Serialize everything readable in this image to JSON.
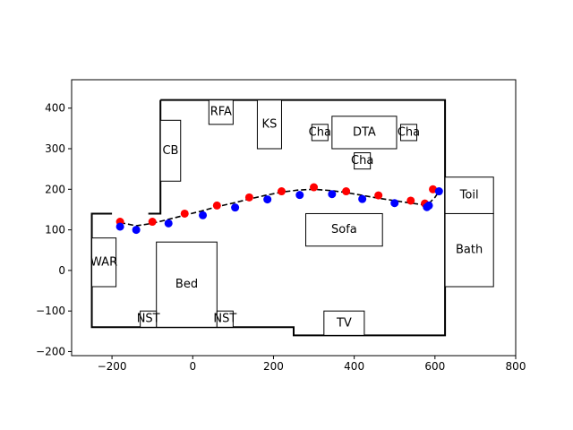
{
  "chart_data": {
    "type": "scatter",
    "title": "",
    "xlabel": "",
    "ylabel": "",
    "xlim": [
      -300,
      800
    ],
    "ylim": [
      -210,
      470
    ],
    "xticks": [
      -200,
      0,
      200,
      400,
      600,
      800
    ],
    "yticks": [
      -200,
      -100,
      0,
      100,
      200,
      300,
      400
    ],
    "grid": false,
    "walls": [
      [
        [
          -80,
          420
        ],
        [
          625,
          420
        ],
        [
          625,
          -160
        ],
        [
          250,
          -160
        ],
        [
          250,
          -140
        ],
        [
          -250,
          -140
        ],
        [
          -250,
          140
        ],
        [
          -200,
          140
        ]
      ],
      [
        [
          -80,
          420
        ],
        [
          -80,
          140
        ],
        [
          -110,
          140
        ]
      ]
    ],
    "furniture": [
      {
        "label": "RFA",
        "x0": 40,
        "x1": 100,
        "y0": 360,
        "y1": 420
      },
      {
        "label": "KS",
        "x0": 160,
        "x1": 220,
        "y0": 300,
        "y1": 420
      },
      {
        "label": "CB",
        "x0": -80,
        "x1": -30,
        "y0": 220,
        "y1": 370
      },
      {
        "label": "Cha",
        "x0": 295,
        "x1": 335,
        "y0": 320,
        "y1": 360
      },
      {
        "label": "DTA",
        "x0": 345,
        "x1": 505,
        "y0": 300,
        "y1": 380
      },
      {
        "label": "Cha",
        "x0": 515,
        "x1": 555,
        "y0": 320,
        "y1": 360
      },
      {
        "label": "Cha",
        "x0": 400,
        "x1": 440,
        "y0": 250,
        "y1": 290
      },
      {
        "label": "Toil",
        "x0": 625,
        "x1": 745,
        "y0": 140,
        "y1": 230
      },
      {
        "label": "Bath",
        "x0": 625,
        "x1": 745,
        "y0": -40,
        "y1": 140
      },
      {
        "label": "Sofa",
        "x0": 280,
        "x1": 470,
        "y0": 60,
        "y1": 140
      },
      {
        "label": "WAR",
        "x0": -250,
        "x1": -190,
        "y0": -40,
        "y1": 80
      },
      {
        "label": "Bed",
        "x0": -90,
        "x1": 60,
        "y0": -140,
        "y1": 70
      },
      {
        "label": "NST",
        "x0": -130,
        "x1": -90,
        "y0": -140,
        "y1": -100
      },
      {
        "label": "NST",
        "x0": 60,
        "x1": 100,
        "y0": -140,
        "y1": -100
      },
      {
        "label": "TV",
        "x0": 325,
        "x1": 425,
        "y0": -160,
        "y1": -100
      }
    ],
    "series": [
      {
        "role": "path",
        "color": "#000000",
        "style": "dashed",
        "x": [
          -180,
          -140,
          -100,
          -60,
          -20,
          20,
          60,
          100,
          140,
          180,
          220,
          260,
          300,
          340,
          380,
          420,
          460,
          500,
          540,
          570,
          585,
          600,
          610
        ],
        "y": [
          118,
          110,
          116,
          126,
          136,
          146,
          157,
          166,
          176,
          185,
          193,
          198,
          200,
          197,
          192,
          185,
          178,
          172,
          166,
          162,
          165,
          180,
          195
        ]
      },
      {
        "role": "points",
        "color": "#ff0000",
        "x": [
          -180,
          -100,
          -20,
          60,
          140,
          220,
          300,
          380,
          460,
          540,
          575,
          595
        ],
        "y": [
          120,
          120,
          140,
          160,
          180,
          195,
          205,
          195,
          185,
          172,
          165,
          200
        ]
      },
      {
        "role": "points",
        "color": "#0000ff",
        "x": [
          -180,
          -140,
          -60,
          25,
          105,
          185,
          265,
          345,
          420,
          500,
          580,
          585,
          610
        ],
        "y": [
          108,
          100,
          116,
          136,
          155,
          175,
          186,
          188,
          176,
          166,
          156,
          160,
          195
        ]
      }
    ]
  }
}
